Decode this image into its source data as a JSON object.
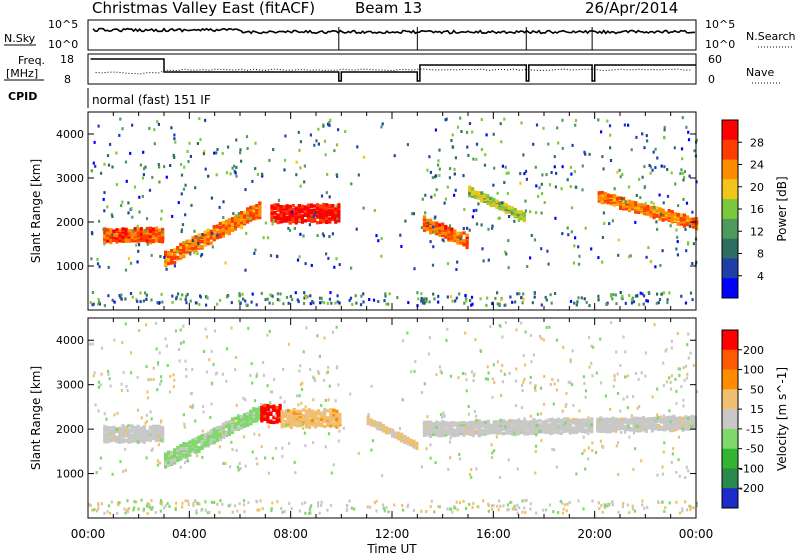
{
  "header": {
    "site": "Christmas Valley East (fitACF)",
    "beam": "Beam 13",
    "date": "26/Apr/2014"
  },
  "top_panels": {
    "nsky_label": "N.Sky",
    "nsearch_label": "N.Search",
    "noise_ticks": [
      "10^5",
      "10^0"
    ],
    "freq_label": "Freq.",
    "freq_unit": "[MHz]",
    "freq_ticks": [
      "18",
      "8"
    ],
    "nave_label": "Nave",
    "nave_ticks": [
      "60",
      "0"
    ],
    "cpid_label": "CPID",
    "cpid_value": "normal (fast) 151 IF"
  },
  "colors": {
    "power_scale": [
      "#0000ff",
      "#1f3fa8",
      "#2e6e62",
      "#4e9a5a",
      "#7cc83c",
      "#f2c51a",
      "#ff8c00",
      "#ff3c00",
      "#ff0000"
    ],
    "velocity_scale": [
      "#1c2cc8",
      "#2a8a4e",
      "#33b533",
      "#7ed86a",
      "#c8c8c8",
      "#f0c070",
      "#ff8c00",
      "#ff5a00",
      "#ff0000"
    ]
  },
  "chart_data": [
    {
      "type": "heatmap",
      "panel": "power",
      "ylabel": "Slant Range [km]",
      "yticks": [
        "1000",
        "2000",
        "3000",
        "4000"
      ],
      "ylim": [
        0,
        4500
      ],
      "colorbar_label": "Power [dB]",
      "colorbar_ticks": [
        "28",
        "24",
        "20",
        "16",
        "12",
        "8",
        "4"
      ],
      "clim": [
        0,
        32
      ],
      "bands": [
        {
          "t": [
            0.6,
            3.0
          ],
          "r0": 1700,
          "r1": 1700,
          "w": 300,
          "v": 26
        },
        {
          "t": [
            3.0,
            6.8
          ],
          "r0": 1150,
          "r1": 2300,
          "w": 320,
          "v": 24
        },
        {
          "t": [
            7.2,
            9.9
          ],
          "r0": 2200,
          "r1": 2200,
          "w": 400,
          "v": 30
        },
        {
          "t": [
            13.1,
            15.0
          ],
          "r0": 2000,
          "r1": 1550,
          "w": 280,
          "v": 25
        },
        {
          "t": [
            15.0,
            17.2
          ],
          "r0": 2700,
          "r1": 2100,
          "w": 160,
          "v": 17
        },
        {
          "t": [
            20.0,
            24.0
          ],
          "r0": 2600,
          "r1": 1950,
          "w": 220,
          "v": 24
        }
      ]
    },
    {
      "type": "heatmap",
      "panel": "velocity",
      "ylabel": "Slant Range [km]",
      "yticks": [
        "1000",
        "2000",
        "3000",
        "4000"
      ],
      "ylim": [
        0,
        4500
      ],
      "colorbar_label": "Velocity [m s^-1]",
      "colorbar_ticks": [
        "200",
        "100",
        "50",
        "15",
        "-15",
        "-50",
        "-100",
        "-200"
      ],
      "clim": [
        -250,
        250
      ],
      "bands": [
        {
          "t": [
            0.6,
            3.0
          ],
          "r0": 1900,
          "r1": 1900,
          "w": 350,
          "v": 0
        },
        {
          "t": [
            3.0,
            6.8
          ],
          "r0": 1300,
          "r1": 2400,
          "w": 320,
          "v": -40
        },
        {
          "t": [
            6.8,
            7.6
          ],
          "r0": 2350,
          "r1": 2350,
          "w": 380,
          "v": 220
        },
        {
          "t": [
            7.6,
            9.9
          ],
          "r0": 2250,
          "r1": 2250,
          "w": 380,
          "v": 60
        },
        {
          "t": [
            11.0,
            13.0
          ],
          "r0": 2200,
          "r1": 1600,
          "w": 120,
          "v": 40
        },
        {
          "t": [
            13.1,
            24.0
          ],
          "r0": 2000,
          "r1": 2150,
          "w": 300,
          "v": 0
        }
      ]
    }
  ],
  "x_axis": {
    "xlabel": "Time UT",
    "ticks": [
      "00:00",
      "04:00",
      "08:00",
      "12:00",
      "16:00",
      "20:00",
      "00:00"
    ],
    "xlim": [
      0,
      24
    ]
  }
}
